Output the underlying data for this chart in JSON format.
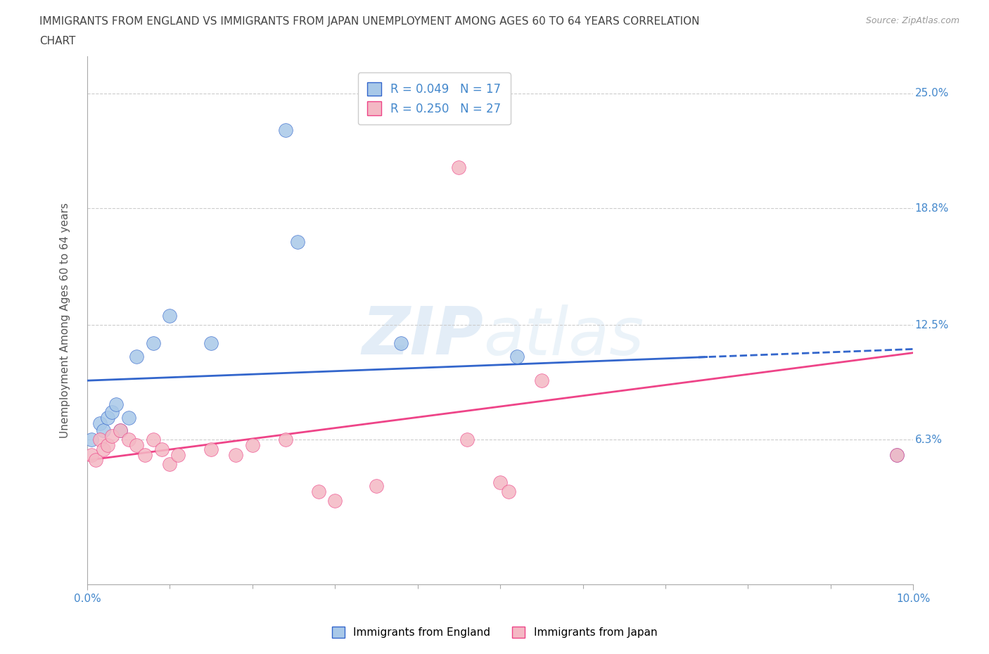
{
  "title_line1": "IMMIGRANTS FROM ENGLAND VS IMMIGRANTS FROM JAPAN UNEMPLOYMENT AMONG AGES 60 TO 64 YEARS CORRELATION",
  "title_line2": "CHART",
  "source": "Source: ZipAtlas.com",
  "england_x": [
    0.05,
    0.15,
    0.2,
    0.25,
    0.3,
    0.35,
    0.4,
    0.5,
    0.6,
    0.8,
    1.0,
    1.5,
    2.4,
    2.55,
    3.8,
    5.2,
    9.8
  ],
  "england_y": [
    6.3,
    7.2,
    6.8,
    7.5,
    7.8,
    8.2,
    6.8,
    7.5,
    10.8,
    11.5,
    13.0,
    11.5,
    23.0,
    17.0,
    11.5,
    10.8,
    5.5
  ],
  "japan_x": [
    0.05,
    0.1,
    0.15,
    0.2,
    0.25,
    0.3,
    0.4,
    0.5,
    0.6,
    0.7,
    0.8,
    0.9,
    1.0,
    1.1,
    1.5,
    1.8,
    2.0,
    2.4,
    2.8,
    3.0,
    3.5,
    4.5,
    4.6,
    5.0,
    5.1,
    5.5,
    9.8
  ],
  "japan_y": [
    5.5,
    5.2,
    6.3,
    5.8,
    6.0,
    6.5,
    6.8,
    6.3,
    6.0,
    5.5,
    6.3,
    5.8,
    5.0,
    5.5,
    5.8,
    5.5,
    6.0,
    6.3,
    3.5,
    3.0,
    3.8,
    21.0,
    6.3,
    4.0,
    3.5,
    9.5,
    5.5
  ],
  "england_R": 0.049,
  "england_N": 17,
  "japan_R": 0.25,
  "japan_N": 27,
  "england_color": "#a8c8e8",
  "japan_color": "#f4b8c4",
  "england_line_color": "#3366cc",
  "japan_line_color": "#ee4488",
  "england_trend_x0": 0.0,
  "england_trend_y0": 9.5,
  "england_trend_x1": 10.0,
  "england_trend_y1": 11.2,
  "england_solid_end": 7.5,
  "japan_trend_x0": 0.0,
  "japan_trend_y0": 5.2,
  "japan_trend_x1": 10.0,
  "japan_trend_y1": 11.0,
  "xlim": [
    0.0,
    10.0
  ],
  "ylim": [
    -1.5,
    27.0
  ],
  "xtick_vals": [
    0.0,
    10.0
  ],
  "xtick_labels": [
    "0.0%",
    "10.0%"
  ],
  "ytick_vals": [
    6.3,
    12.5,
    18.8,
    25.0
  ],
  "ytick_labels": [
    "6.3%",
    "12.5%",
    "18.8%",
    "25.0%"
  ],
  "ylabel": "Unemployment Among Ages 60 to 64 years",
  "watermark_zip": "ZIP",
  "watermark_atlas": "atlas",
  "background_color": "#ffffff",
  "grid_color": "#cccccc",
  "tick_color": "#4488cc",
  "title_color": "#444444",
  "source_color": "#999999",
  "marker_size": 200
}
